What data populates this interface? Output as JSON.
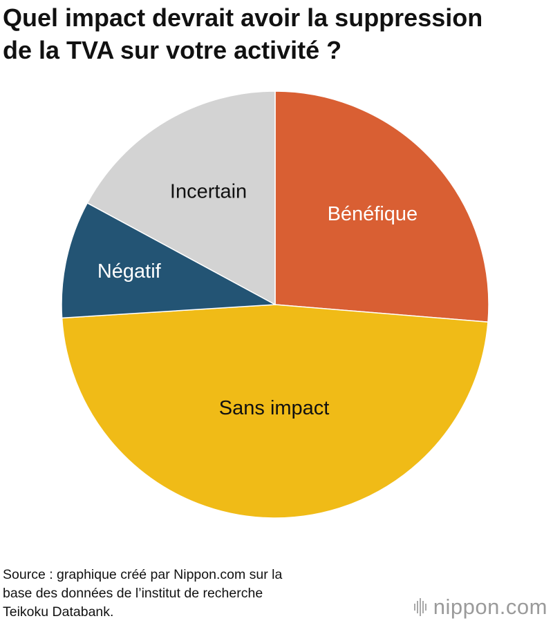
{
  "title_lines": [
    "Quel impact devrait avoir la suppression",
    "de la TVA sur votre activité ?"
  ],
  "chart_data": {
    "type": "pie",
    "title": "Quel impact devrait avoir la suppression de la TVA sur votre activité ?",
    "start_angle_deg": 0,
    "direction": "clockwise",
    "slices": [
      {
        "label": "Bénéfique",
        "value": 26.3,
        "color": "#d95f33",
        "label_color": "#ffffff"
      },
      {
        "label": "Sans impact",
        "value": 47.7,
        "color": "#f0bb17",
        "label_color": "#111111"
      },
      {
        "label": "Négatif",
        "value": 8.9,
        "color": "#235474",
        "label_color": "#ffffff"
      },
      {
        "label": "Incertain",
        "value": 17.1,
        "color": "#d3d3d3",
        "label_color": "#111111"
      }
    ]
  },
  "source_lines": [
    "Source : graphique créé par Nippon.com sur la",
    "base des données de l’institut de recherche",
    "Teikoku Databank."
  ],
  "logo": {
    "text": "nippon.com",
    "icon": "sound-bars-icon"
  }
}
